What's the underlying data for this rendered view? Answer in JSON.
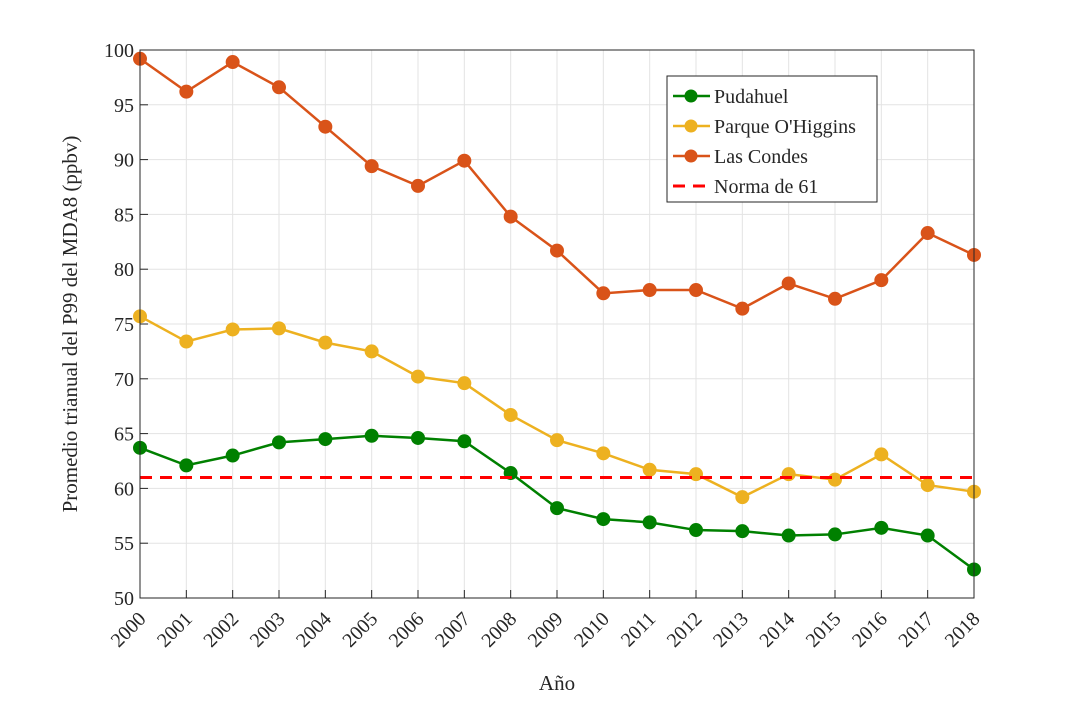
{
  "chart_data": {
    "type": "line",
    "title": "",
    "xlabel": "Año",
    "ylabel": "Promedio trianual del P99 del MDA8 (ppbv)",
    "x": [
      2000,
      2001,
      2002,
      2003,
      2004,
      2005,
      2006,
      2007,
      2008,
      2009,
      2010,
      2011,
      2012,
      2013,
      2014,
      2015,
      2016,
      2017,
      2018
    ],
    "xlim": [
      2000,
      2018
    ],
    "ylim": [
      50,
      100
    ],
    "yticks": [
      50,
      55,
      60,
      65,
      70,
      75,
      80,
      85,
      90,
      95,
      100
    ],
    "grid": true,
    "legend_position": "top-right",
    "series": [
      {
        "name": "Pudahuel",
        "color": "#008000",
        "marker": "circle",
        "values": [
          63.7,
          62.1,
          63.0,
          64.2,
          64.5,
          64.8,
          64.6,
          64.3,
          61.4,
          58.2,
          57.2,
          56.9,
          56.2,
          56.1,
          55.7,
          55.8,
          56.4,
          55.7,
          52.6
        ]
      },
      {
        "name": "Parque O'Higgins",
        "color": "#EDB120",
        "marker": "circle",
        "values": [
          75.7,
          73.4,
          74.5,
          74.6,
          73.3,
          72.5,
          70.2,
          69.6,
          66.7,
          64.4,
          63.2,
          61.7,
          61.3,
          59.2,
          61.3,
          60.8,
          63.1,
          60.3,
          59.7
        ]
      },
      {
        "name": "Las Condes",
        "color": "#D95319",
        "marker": "circle",
        "values": [
          99.2,
          96.2,
          98.9,
          96.6,
          93.0,
          89.4,
          87.6,
          89.9,
          84.8,
          81.7,
          77.8,
          78.1,
          78.1,
          76.4,
          78.7,
          77.3,
          79.0,
          83.3,
          81.3
        ]
      },
      {
        "name": "Norma de 61",
        "color": "#FF0000",
        "style": "dashed",
        "constant": 61
      }
    ]
  }
}
